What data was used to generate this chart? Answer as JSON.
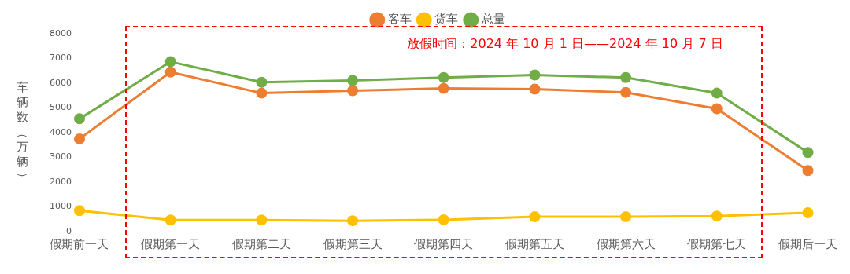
{
  "chart_data": {
    "type": "line",
    "ylabel": "车辆数（万辆）",
    "categories": [
      "假期前一天",
      "假期第一天",
      "假期第二天",
      "假期第三天",
      "假期第四天",
      "假期第五天",
      "假期第六天",
      "假期第七天",
      "假期后一天"
    ],
    "series": [
      {
        "name": "客车",
        "color": "#ed7d31",
        "values": [
          3750,
          6450,
          5600,
          5700,
          5790,
          5760,
          5630,
          4970,
          2470
        ]
      },
      {
        "name": "货车",
        "color": "#ffc000",
        "values": [
          850,
          470,
          470,
          440,
          480,
          600,
          600,
          630,
          760
        ]
      },
      {
        "name": "总量",
        "color": "#70ad47",
        "values": [
          4560,
          6870,
          6040,
          6110,
          6230,
          6330,
          6230,
          5600,
          3200
        ]
      }
    ],
    "ylim": [
      0,
      8000
    ],
    "yticks": [
      0,
      1000,
      2000,
      3000,
      4000,
      5000,
      6000,
      7000,
      8000
    ],
    "grid": false,
    "legend": "top",
    "marker": "circle",
    "line_style": "solid",
    "annotations": [
      "放假时间：2024 年 10 月 1 日——2024 年 10 月 7 日"
    ]
  }
}
